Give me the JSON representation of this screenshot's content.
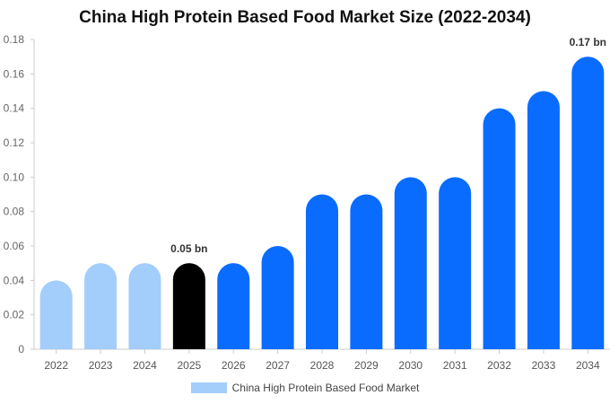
{
  "title": "China High Protein Based Food Market Size (2022-2034)",
  "chart_data": {
    "type": "bar",
    "categories": [
      "2022",
      "2023",
      "2024",
      "2025",
      "2026",
      "2027",
      "2028",
      "2029",
      "2030",
      "2031",
      "2032",
      "2033",
      "2034"
    ],
    "series": [
      {
        "name": "China High Protein Based Food Market",
        "values": [
          0.04,
          0.05,
          0.05,
          0.05,
          0.05,
          0.06,
          0.09,
          0.09,
          0.1,
          0.1,
          0.14,
          0.15,
          0.17
        ]
      }
    ],
    "ylim": [
      0,
      0.18
    ],
    "yticks": [
      "0",
      "0.02",
      "0.04",
      "0.06",
      "0.08",
      "0.10",
      "0.12",
      "0.14",
      "0.16",
      "0.18"
    ],
    "xlabel": "",
    "ylabel": "",
    "grid": false,
    "legend_position": "bottom",
    "annotations": [
      {
        "category": "2025",
        "text": "0.05 bn"
      },
      {
        "category": "2034",
        "text": "0.17 bn"
      }
    ],
    "bar_colors": {
      "historical": "#a3cdfb",
      "base_year": "#000000",
      "forecast": "#0a6cff"
    },
    "base_year": "2025"
  },
  "legend": {
    "label": "China High Protein Based Food Market",
    "color": "#a3cdfb"
  }
}
